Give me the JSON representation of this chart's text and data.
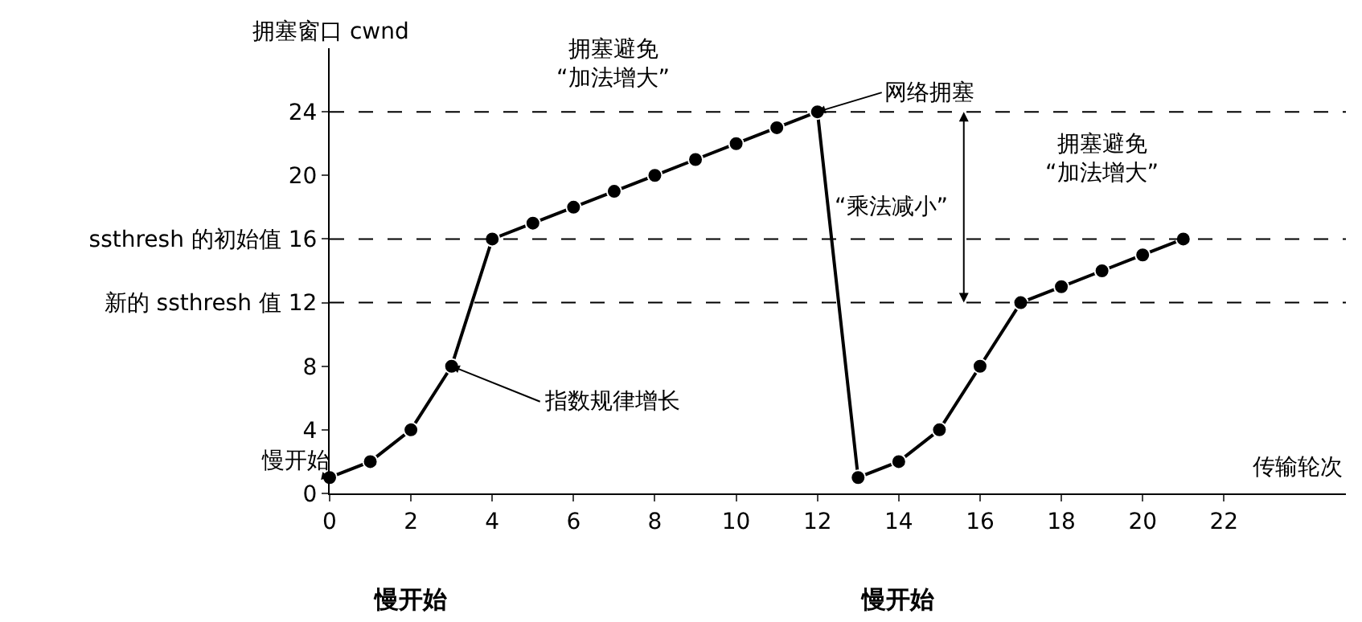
{
  "chart_data": {
    "type": "line",
    "xlabel": "传输轮次",
    "ylabel": "拥塞窗口 cwnd",
    "series": [
      {
        "color": "#000000",
        "x": [
          0,
          1,
          2,
          3,
          4,
          5,
          6,
          7,
          8,
          9,
          10,
          11,
          12,
          13,
          14,
          15,
          16,
          17,
          18,
          19,
          20,
          21
        ],
        "values": [
          1,
          2,
          4,
          8,
          16,
          17,
          18,
          19,
          20,
          21,
          22,
          23,
          24,
          1,
          2,
          4,
          8,
          12,
          13,
          14,
          15,
          16
        ]
      }
    ],
    "marker": "circle",
    "line_style": "solid",
    "grid": false,
    "xlim": [
      0,
      25
    ],
    "ylim": [
      0,
      28
    ],
    "xticks": [
      0,
      2,
      4,
      6,
      8,
      10,
      12,
      14,
      16,
      18,
      20,
      22
    ],
    "yticks": [
      0,
      4,
      8,
      {
        "value": 12,
        "label": "新的 ssthresh 值 12"
      },
      {
        "value": 16,
        "label": "ssthresh 的初始值 16"
      },
      20,
      24
    ],
    "ref_lines": [
      {
        "axis": "y",
        "value": 24,
        "line_style": "dashed",
        "color": "#000000"
      },
      {
        "axis": "y",
        "value": 16,
        "line_style": "dashed",
        "color": "#000000"
      },
      {
        "axis": "y",
        "value": 12,
        "line_style": "dashed",
        "color": "#000000"
      }
    ],
    "annotations": [
      "拥塞避免\n“加法增大”",
      {
        "text": "网络拥塞",
        "x": 12,
        "y": 24
      },
      "拥塞避免\n“加法增大”",
      "“乘法减小”",
      {
        "text": "指数规律增长",
        "x": 3,
        "y": 8
      },
      {
        "text": "慢开始",
        "x": 0,
        "y": 1
      },
      "慢开始",
      "慢开始"
    ]
  }
}
